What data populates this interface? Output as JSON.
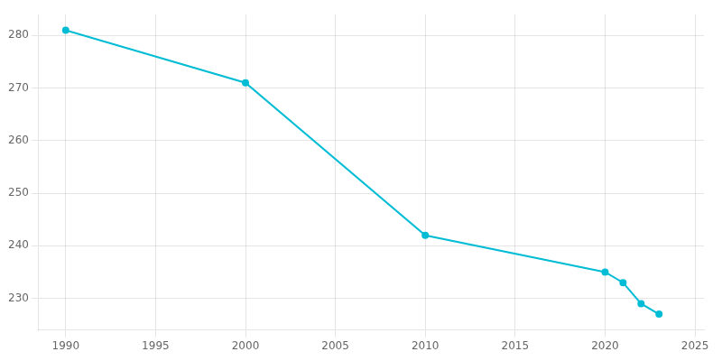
{
  "chart_data": {
    "type": "line",
    "x": [
      1990,
      2000,
      2010,
      2020,
      2021,
      2022,
      2023
    ],
    "values": [
      281,
      271,
      242,
      235,
      233,
      229,
      227
    ],
    "color": "#00bcd4",
    "marker": "circle",
    "xlim": [
      1988.5,
      2025.5
    ],
    "ylim": [
      224,
      284
    ],
    "xticks": [
      1990,
      1995,
      2000,
      2005,
      2010,
      2015,
      2020,
      2025
    ],
    "yticks": [
      230,
      240,
      250,
      260,
      270,
      280
    ],
    "grid": true
  }
}
